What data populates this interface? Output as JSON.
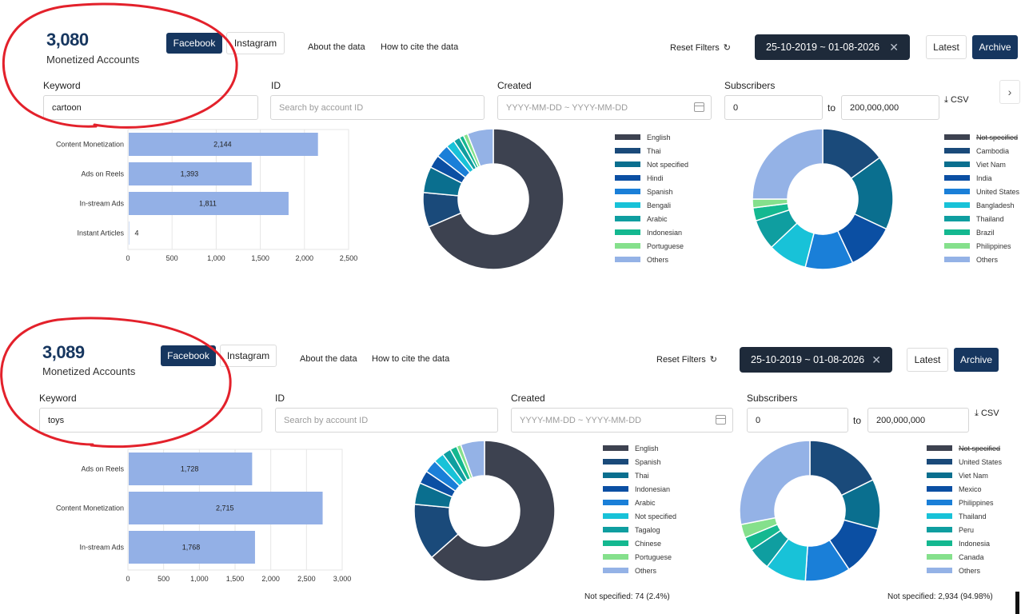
{
  "panels": [
    {
      "count": "3,080",
      "count_label": "Monetized Accounts",
      "tabs": [
        {
          "label": "Facebook",
          "active": true
        },
        {
          "label": "Instagram",
          "active": false
        }
      ],
      "links": {
        "about": "About the data",
        "cite": "How to cite the data"
      },
      "reset_filters": "Reset Filters",
      "date_range": "25-10-2019 ~ 01-08-2026",
      "latest": "Latest",
      "archive": "Archive",
      "filters": {
        "keyword_label": "Keyword",
        "keyword_value": "cartoon",
        "id_label": "ID",
        "id_placeholder": "Search by account ID",
        "created_label": "Created",
        "created_placeholder": "YYYY-MM-DD ~ YYYY-MM-DD",
        "subscribers_label": "Subscribers",
        "subscribers_min": "0",
        "to_label": "to",
        "subscribers_max": "200,000,000",
        "csv_label": "CSV"
      },
      "footnotes": {
        "language": "",
        "country": ""
      }
    },
    {
      "count": "3,089",
      "count_label": "Monetized Accounts",
      "tabs": [
        {
          "label": "Facebook",
          "active": true
        },
        {
          "label": "Instagram",
          "active": false
        }
      ],
      "links": {
        "about": "About the data",
        "cite": "How to cite the data"
      },
      "reset_filters": "Reset Filters",
      "date_range": "25-10-2019 ~ 01-08-2026",
      "latest": "Latest",
      "archive": "Archive",
      "filters": {
        "keyword_label": "Keyword",
        "keyword_value": "toys",
        "id_label": "ID",
        "id_placeholder": "Search by account ID",
        "created_label": "Created",
        "created_placeholder": "YYYY-MM-DD ~ YYYY-MM-DD",
        "subscribers_label": "Subscribers",
        "subscribers_min": "0",
        "to_label": "to",
        "subscribers_max": "200,000,000",
        "csv_label": "CSV"
      },
      "footnotes": {
        "language": "Not specified: 74 (2.4%)",
        "country": "Not specified: 2,934 (94.98%)"
      }
    }
  ],
  "colors": {
    "bar": "#93b0e6",
    "palette": [
      "#3d4250",
      "#1a4a7a",
      "#0a6f8f",
      "#0b4fa3",
      "#1a7fd8",
      "#18c2d8",
      "#0f9ea0",
      "#14b890",
      "#85e08c",
      "#94b2e6"
    ],
    "annotation": "#e3212b"
  },
  "chart_data": [
    {
      "type": "bar",
      "orientation": "horizontal",
      "categories": [
        "Content Monetization",
        "Ads on Reels",
        "In-stream Ads",
        "Instant Articles"
      ],
      "values": [
        2144,
        1393,
        1811,
        4
      ],
      "data_labels": [
        "2,144",
        "1,393",
        "1,811",
        "4"
      ],
      "ticks": [
        "0",
        "500",
        "1,000",
        "1,500",
        "2,000",
        "2,500"
      ],
      "xlim": [
        0,
        2500
      ]
    },
    {
      "type": "pie",
      "donut": true,
      "labels": [
        "English",
        "Thai",
        "Not specified",
        "Hindi",
        "Spanish",
        "Bengali",
        "Arabic",
        "Indonesian",
        "Portuguese",
        "Others"
      ],
      "values": [
        68.5,
        8,
        6,
        3,
        3,
        2,
        1.5,
        1,
        1,
        6
      ],
      "strike_first": false
    },
    {
      "type": "pie",
      "donut": true,
      "labels": [
        "Not specified",
        "Cambodia",
        "Viet Nam",
        "India",
        "United States",
        "Bangladesh",
        "Thailand",
        "Brazil",
        "Philippines",
        "Others"
      ],
      "values": [
        0,
        15,
        17,
        11,
        11,
        9,
        7,
        3,
        2,
        25
      ],
      "strike_first": true
    },
    {
      "type": "bar",
      "orientation": "horizontal",
      "categories": [
        "Ads on Reels",
        "Content Monetization",
        "In-stream Ads"
      ],
      "values": [
        1728,
        2715,
        1768
      ],
      "data_labels": [
        "1,728",
        "2,715",
        "1,768"
      ],
      "ticks": [
        "0",
        "500",
        "1,000",
        "1,500",
        "2,000",
        "2,500",
        "3,000"
      ],
      "xlim": [
        0,
        3000
      ]
    },
    {
      "type": "pie",
      "donut": true,
      "labels": [
        "English",
        "Spanish",
        "Thai",
        "Indonesian",
        "Arabic",
        "Not specified",
        "Tagalog",
        "Chinese",
        "Portuguese",
        "Others"
      ],
      "values": [
        63.5,
        13,
        5,
        3,
        3,
        2.4,
        2,
        1.6,
        1,
        5.5
      ],
      "strike_first": false
    },
    {
      "type": "pie",
      "donut": true,
      "labels": [
        "Not specified",
        "United States",
        "Viet Nam",
        "Mexico",
        "Philippines",
        "Thailand",
        "Peru",
        "Indonesia",
        "Canada",
        "Others"
      ],
      "values": [
        0,
        17,
        11,
        11,
        10,
        9,
        5,
        3,
        3,
        27
      ],
      "strike_first": true
    }
  ]
}
